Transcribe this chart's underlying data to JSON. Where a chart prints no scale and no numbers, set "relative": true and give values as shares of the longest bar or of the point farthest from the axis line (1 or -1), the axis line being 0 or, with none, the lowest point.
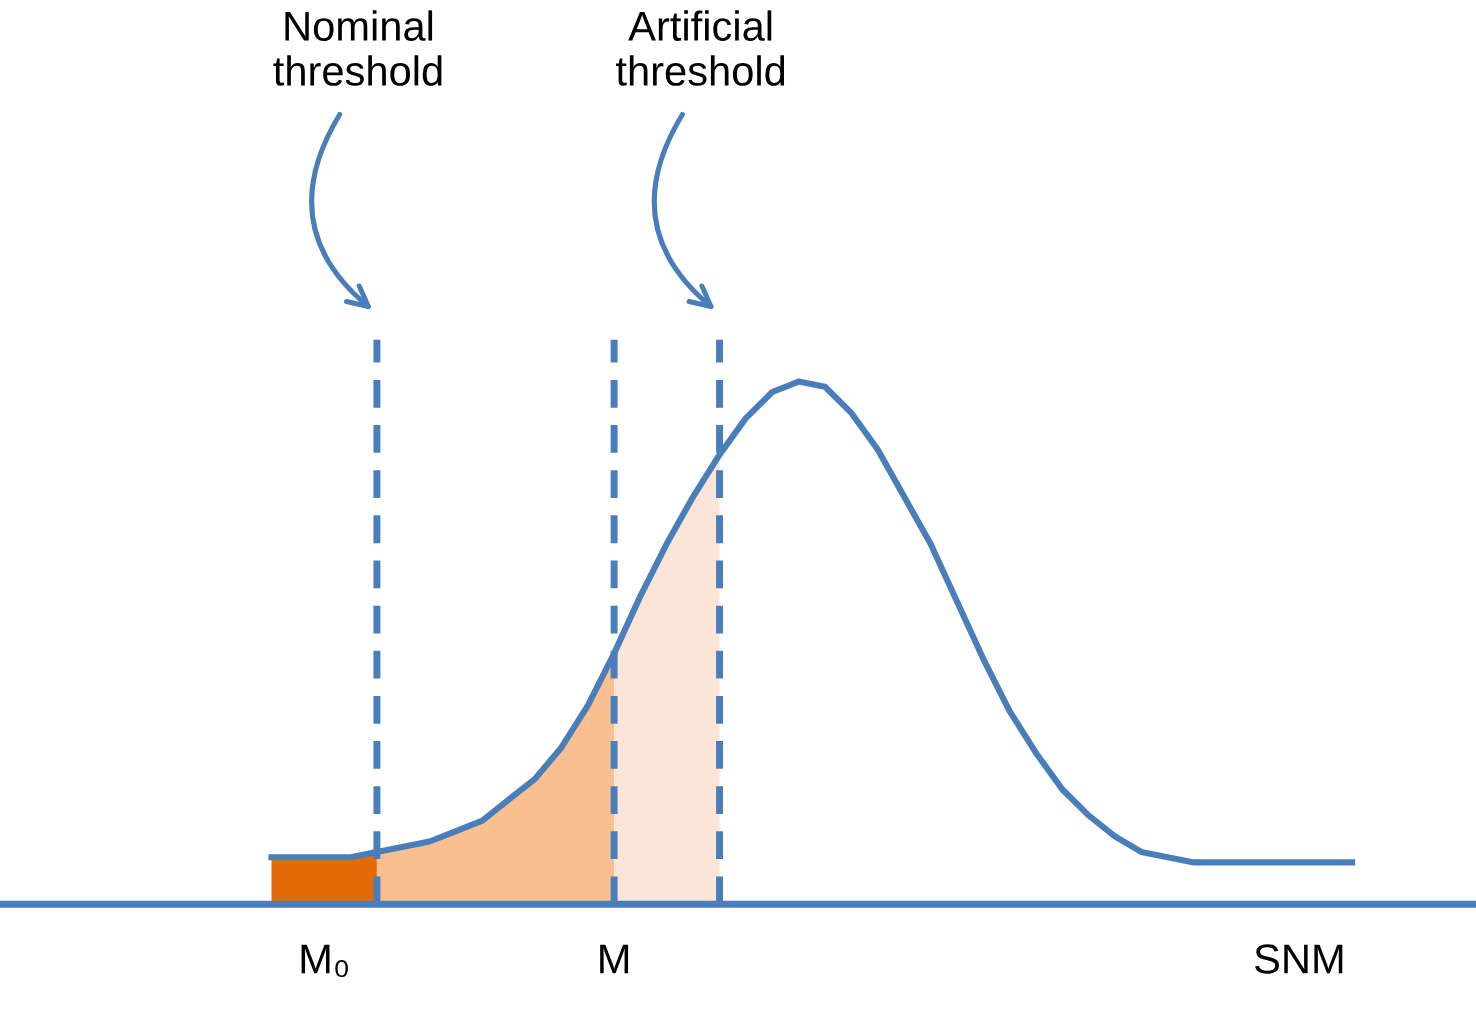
{
  "chart_data": {
    "type": "line",
    "relative": true,
    "categories": [
      null,
      null,
      "M₀",
      null,
      null,
      null,
      null,
      null,
      null,
      null,
      null,
      null,
      null,
      "M",
      null,
      null,
      null,
      null,
      null,
      null,
      null,
      null,
      null,
      null,
      null,
      null,
      null,
      null,
      null,
      null,
      null,
      null,
      null,
      null,
      null,
      null,
      null,
      null,
      null,
      "SNM",
      null,
      null
    ],
    "series": [
      {
        "type": "area",
        "color": "#e36c09",
        "values": [
          0.09,
          0.09,
          0.09,
          0.09,
          0.1,
          null,
          null,
          null,
          null,
          null,
          null,
          null,
          null,
          null,
          null,
          null,
          null,
          null,
          null,
          null,
          null,
          null,
          null,
          null,
          null,
          null,
          null,
          null,
          null,
          null,
          null,
          null,
          null,
          null,
          null,
          null,
          null,
          null,
          null,
          null,
          null,
          null
        ]
      },
      {
        "type": "area",
        "color": "#f9bf8f",
        "values": [
          null,
          null,
          null,
          null,
          0.1,
          0.11,
          0.12,
          0.14,
          0.16,
          0.2,
          0.24,
          0.3,
          0.38,
          0.48,
          null,
          null,
          null,
          null,
          null,
          null,
          null,
          null,
          null,
          null,
          null,
          null,
          null,
          null,
          null,
          null,
          null,
          null,
          null,
          null,
          null,
          null,
          null,
          null,
          null,
          null,
          null,
          null
        ]
      },
      {
        "type": "area",
        "color": "#fce4d6",
        "values": [
          null,
          null,
          null,
          null,
          null,
          null,
          null,
          null,
          null,
          null,
          null,
          null,
          null,
          0.48,
          0.59,
          0.69,
          0.78,
          0.86,
          null,
          null,
          null,
          null,
          null,
          null,
          null,
          null,
          null,
          null,
          null,
          null,
          null,
          null,
          null,
          null,
          null,
          null,
          null,
          null,
          null,
          null,
          null,
          null
        ]
      },
      {
        "color": "#4a7ebb",
        "values": [
          0.09,
          0.09,
          0.09,
          0.09,
          0.1,
          0.11,
          0.12,
          0.14,
          0.16,
          0.2,
          0.24,
          0.3,
          0.38,
          0.48,
          0.59,
          0.69,
          0.78,
          0.86,
          0.93,
          0.98,
          1,
          0.99,
          0.94,
          0.87,
          0.78,
          0.69,
          0.58,
          0.47,
          0.37,
          0.29,
          0.22,
          0.17,
          0.13,
          0.1,
          0.09,
          0.08,
          0.08,
          0.08,
          0.08,
          0.08,
          0.08,
          0.08
        ]
      }
    ],
    "annotations": [
      "Nominal\nthreshold",
      "Artificial\nthreshold"
    ],
    "legend": false,
    "grid": "x"
  }
}
